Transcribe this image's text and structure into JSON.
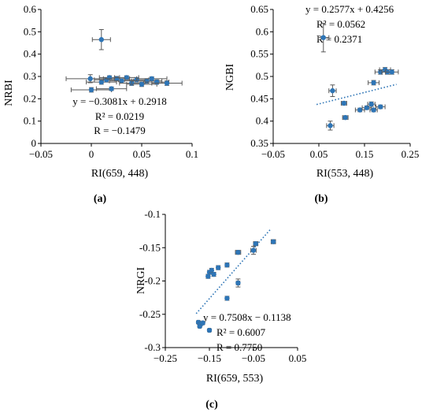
{
  "colors": {
    "point": "#2e75b6",
    "errorbar": "#595959",
    "trend": "#2e75b6",
    "axis": "#000000"
  },
  "chart_data": [
    {
      "id": "a",
      "type": "scatter",
      "panel_label": "(a)",
      "xlabel": "RI(659, 448)",
      "ylabel": "NRBI",
      "xlim": [
        -0.05,
        0.1
      ],
      "ylim": [
        0,
        0.6
      ],
      "xticks": [
        -0.05,
        0,
        0.05,
        0.1
      ],
      "xtick_labels": [
        "-0.05",
        "0",
        "0.05",
        "0.1"
      ],
      "yticks": [
        0,
        0.1,
        0.2,
        0.3,
        0.4,
        0.5,
        0.6
      ],
      "ytick_labels": [
        "0",
        "0.1",
        "0.2",
        "0.3",
        "0.4",
        "0.5",
        "0.6"
      ],
      "points": [
        {
          "x": 0.01,
          "y": 0.465,
          "xerr": 0.009,
          "yerr": 0.045
        },
        {
          "x": -0.001,
          "y": 0.29,
          "xerr": 0.024,
          "yerr": 0.018
        },
        {
          "x": 0.0,
          "y": 0.24,
          "xerr": 0.02,
          "yerr": 0.01
        },
        {
          "x": 0.02,
          "y": 0.245,
          "xerr": 0.015,
          "yerr": 0.008
        },
        {
          "x": 0.01,
          "y": 0.275,
          "xerr": 0.015,
          "yerr": 0.01
        },
        {
          "x": 0.015,
          "y": 0.285,
          "xerr": 0.012,
          "yerr": 0.01
        },
        {
          "x": 0.018,
          "y": 0.295,
          "xerr": 0.01,
          "yerr": 0.008
        },
        {
          "x": 0.025,
          "y": 0.29,
          "xerr": 0.013,
          "yerr": 0.01
        },
        {
          "x": 0.03,
          "y": 0.28,
          "xerr": 0.012,
          "yerr": 0.01
        },
        {
          "x": 0.035,
          "y": 0.295,
          "xerr": 0.012,
          "yerr": 0.008
        },
        {
          "x": 0.04,
          "y": 0.27,
          "xerr": 0.012,
          "yerr": 0.01
        },
        {
          "x": 0.045,
          "y": 0.285,
          "xerr": 0.012,
          "yerr": 0.01
        },
        {
          "x": 0.05,
          "y": 0.265,
          "xerr": 0.015,
          "yerr": 0.01
        },
        {
          "x": 0.055,
          "y": 0.28,
          "xerr": 0.015,
          "yerr": 0.01
        },
        {
          "x": 0.06,
          "y": 0.29,
          "xerr": 0.015,
          "yerr": 0.008
        },
        {
          "x": 0.065,
          "y": 0.275,
          "xerr": 0.012,
          "yerr": 0.01
        },
        {
          "x": 0.075,
          "y": 0.27,
          "xerr": 0.015,
          "yerr": 0.01
        }
      ],
      "trendline": null,
      "annotations": [
        "y = -0.3081x + 0.2918",
        "R² = 0.0219",
        "R = -0.1479"
      ]
    },
    {
      "id": "b",
      "type": "scatter",
      "panel_label": "(b)",
      "xlabel": "RI(553, 448)",
      "ylabel": "NGBI",
      "xlim": [
        -0.05,
        0.25
      ],
      "ylim": [
        0.35,
        0.65
      ],
      "xticks": [
        -0.05,
        0.05,
        0.15,
        0.25
      ],
      "xtick_labels": [
        "-0.05",
        "0.05",
        "0.15",
        "0.25"
      ],
      "yticks": [
        0.35,
        0.4,
        0.45,
        0.5,
        0.55,
        0.6,
        0.65
      ],
      "ytick_labels": [
        "0.35",
        "0.4",
        "0.45",
        "0.5",
        "0.55",
        "0.6",
        "0.65"
      ],
      "points": [
        {
          "x": 0.06,
          "y": 0.587,
          "xerr": 0.012,
          "yerr": 0.032
        },
        {
          "x": 0.08,
          "y": 0.468,
          "xerr": 0.008,
          "yerr": 0.013
        },
        {
          "x": 0.075,
          "y": 0.39,
          "xerr": 0.008,
          "yerr": 0.01
        },
        {
          "x": 0.108,
          "y": 0.408,
          "xerr": 0.006,
          "yerr": 0.004
        },
        {
          "x": 0.105,
          "y": 0.44,
          "xerr": 0.006,
          "yerr": 0.004
        },
        {
          "x": 0.14,
          "y": 0.425,
          "xerr": 0.01,
          "yerr": 0.004
        },
        {
          "x": 0.155,
          "y": 0.43,
          "xerr": 0.01,
          "yerr": 0.004
        },
        {
          "x": 0.165,
          "y": 0.438,
          "xerr": 0.008,
          "yerr": 0.005
        },
        {
          "x": 0.17,
          "y": 0.425,
          "xerr": 0.008,
          "yerr": 0.004
        },
        {
          "x": 0.185,
          "y": 0.432,
          "xerr": 0.01,
          "yerr": 0.004
        },
        {
          "x": 0.17,
          "y": 0.486,
          "xerr": 0.012,
          "yerr": 0.005
        },
        {
          "x": 0.185,
          "y": 0.51,
          "xerr": 0.012,
          "yerr": 0.005
        },
        {
          "x": 0.195,
          "y": 0.515,
          "xerr": 0.012,
          "yerr": 0.005
        },
        {
          "x": 0.2,
          "y": 0.51,
          "xerr": 0.012,
          "yerr": 0.005
        },
        {
          "x": 0.21,
          "y": 0.51,
          "xerr": 0.014,
          "yerr": 0.005
        }
      ],
      "trendline": {
        "slope": 0.2577,
        "intercept": 0.4256,
        "x_range": [
          0.045,
          0.22
        ]
      },
      "annotations": [
        "y = 0.2577x + 0.4256",
        "R² = 0.0562",
        "R = 0.2371"
      ]
    },
    {
      "id": "c",
      "type": "scatter",
      "panel_label": "(c)",
      "xlabel": "RI(659, 553)",
      "ylabel": "NRGI",
      "xlim": [
        -0.25,
        0.05
      ],
      "ylim": [
        -0.3,
        -0.1
      ],
      "xticks": [
        -0.25,
        -0.15,
        -0.05,
        0.05
      ],
      "xtick_labels": [
        "-0.25",
        "-0.15",
        "-0.05",
        "0.05"
      ],
      "yticks": [
        -0.3,
        -0.25,
        -0.2,
        -0.15,
        -0.1
      ],
      "ytick_labels": [
        "-0.3",
        "-0.25",
        "-0.2",
        "-0.15",
        "-0.1"
      ],
      "points": [
        {
          "x": -0.175,
          "y": -0.262,
          "xerr": 0.003,
          "yerr": 0.002
        },
        {
          "x": -0.17,
          "y": -0.265,
          "xerr": 0.003,
          "yerr": 0.002
        },
        {
          "x": -0.172,
          "y": -0.268,
          "xerr": 0.003,
          "yerr": 0.002
        },
        {
          "x": -0.165,
          "y": -0.263,
          "xerr": 0.003,
          "yerr": 0.002
        },
        {
          "x": -0.15,
          "y": -0.274,
          "xerr": 0.003,
          "yerr": 0.002
        },
        {
          "x": -0.15,
          "y": -0.187,
          "xerr": 0.003,
          "yerr": 0.003
        },
        {
          "x": -0.153,
          "y": -0.193,
          "xerr": 0.003,
          "yerr": 0.003
        },
        {
          "x": -0.145,
          "y": -0.184,
          "xerr": 0.003,
          "yerr": 0.003
        },
        {
          "x": -0.14,
          "y": -0.19,
          "xerr": 0.003,
          "yerr": 0.003
        },
        {
          "x": -0.13,
          "y": -0.18,
          "xerr": 0.003,
          "yerr": 0.003
        },
        {
          "x": -0.11,
          "y": -0.176,
          "xerr": 0.004,
          "yerr": 0.003
        },
        {
          "x": -0.11,
          "y": -0.226,
          "xerr": 0.003,
          "yerr": 0.003
        },
        {
          "x": -0.085,
          "y": -0.157,
          "xerr": 0.006,
          "yerr": 0.003
        },
        {
          "x": -0.085,
          "y": -0.203,
          "xerr": 0.004,
          "yerr": 0.006
        },
        {
          "x": -0.05,
          "y": -0.154,
          "xerr": 0.006,
          "yerr": 0.006
        },
        {
          "x": -0.045,
          "y": -0.144,
          "xerr": 0.005,
          "yerr": 0.003
        },
        {
          "x": -0.005,
          "y": -0.141,
          "xerr": 0.005,
          "yerr": 0.003
        }
      ],
      "trendline": {
        "slope": 0.7508,
        "intercept": -0.1138,
        "x_range": [
          -0.18,
          -0.01
        ]
      },
      "annotations": [
        "y = 0.7508x - 0.1138",
        "R² = 0.6007",
        "R = 0.7750"
      ]
    }
  ]
}
